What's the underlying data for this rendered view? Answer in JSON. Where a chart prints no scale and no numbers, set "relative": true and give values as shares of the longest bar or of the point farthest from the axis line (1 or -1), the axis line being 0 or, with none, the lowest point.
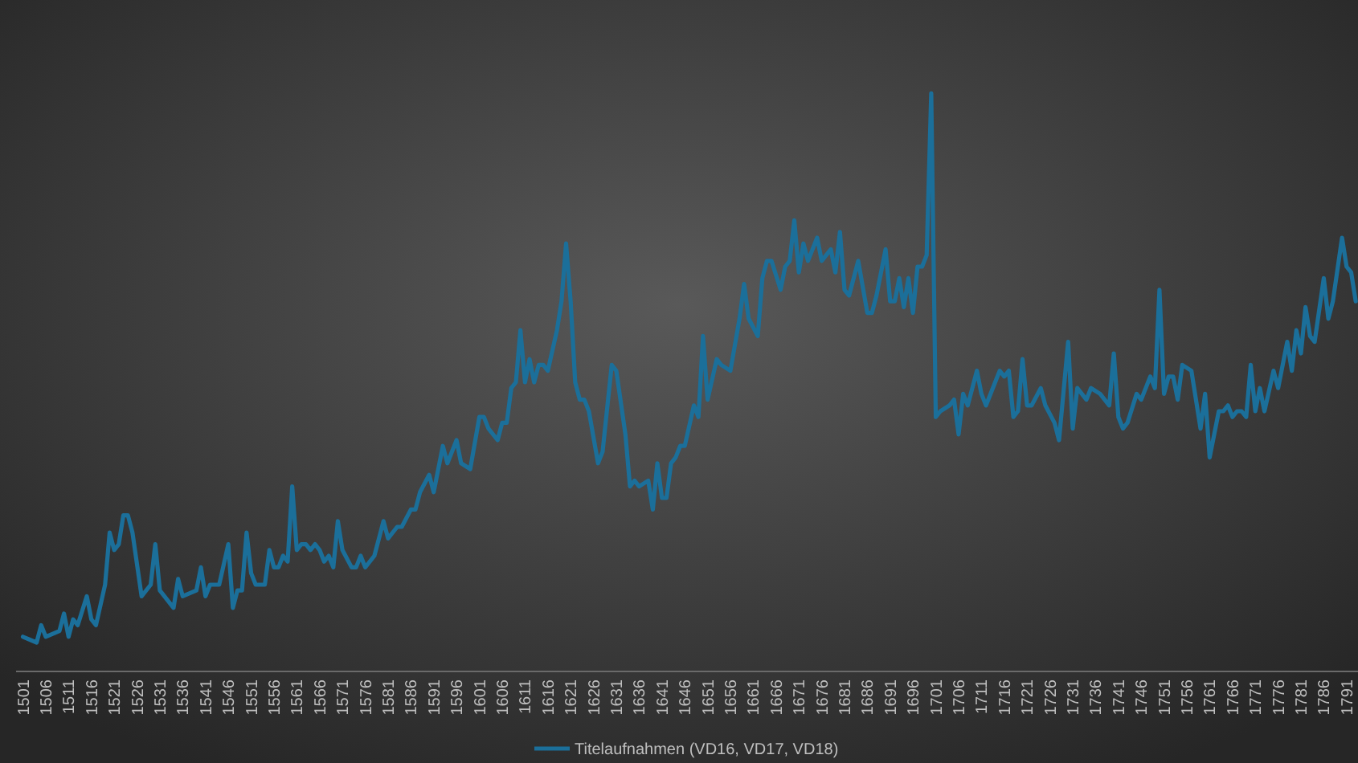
{
  "chart_data": {
    "type": "line",
    "relative": true,
    "legend": "bottom",
    "marker": "none",
    "line_style": "solid",
    "xlim": [
      1499.5,
      1793.5
    ],
    "xticks": [
      1501,
      1506,
      1511,
      1516,
      1521,
      1526,
      1531,
      1536,
      1541,
      1546,
      1551,
      1556,
      1561,
      1566,
      1571,
      1576,
      1581,
      1586,
      1591,
      1596,
      1601,
      1606,
      1611,
      1616,
      1621,
      1626,
      1631,
      1636,
      1641,
      1646,
      1651,
      1656,
      1661,
      1666,
      1671,
      1676,
      1681,
      1686,
      1691,
      1696,
      1701,
      1706,
      1711,
      1716,
      1721,
      1726,
      1731,
      1736,
      1741,
      1746,
      1751,
      1756,
      1761,
      1766,
      1771,
      1776,
      1781,
      1786,
      1791
    ],
    "x": [
      1501,
      1504,
      1505,
      1506,
      1509,
      1510,
      1511,
      1512,
      1513,
      1515,
      1516,
      1517,
      1519,
      1520,
      1521,
      1522,
      1523,
      1524,
      1525,
      1527,
      1529,
      1530,
      1531,
      1533,
      1534,
      1535,
      1536,
      1539,
      1540,
      1541,
      1542,
      1544,
      1546,
      1547,
      1548,
      1549,
      1550,
      1551,
      1552,
      1553,
      1554,
      1555,
      1556,
      1557,
      1558,
      1559,
      1560,
      1561,
      1562,
      1563,
      1564,
      1565,
      1566,
      1567,
      1568,
      1569,
      1570,
      1571,
      1573,
      1574,
      1575,
      1576,
      1578,
      1580,
      1581,
      1583,
      1584,
      1586,
      1587,
      1588,
      1590,
      1591,
      1593,
      1594,
      1596,
      1597,
      1599,
      1601,
      1602,
      1603,
      1605,
      1606,
      1607,
      1608,
      1609,
      1610,
      1611,
      1612,
      1613,
      1614,
      1615,
      1616,
      1618,
      1619,
      1620,
      1621,
      1622,
      1623,
      1624,
      1625,
      1627,
      1628,
      1630,
      1631,
      1633,
      1634,
      1635,
      1636,
      1638,
      1639,
      1640,
      1641,
      1642,
      1643,
      1644,
      1645,
      1646,
      1648,
      1649,
      1650,
      1651,
      1653,
      1654,
      1656,
      1658,
      1659,
      1660,
      1662,
      1663,
      1664,
      1665,
      1667,
      1668,
      1669,
      1670,
      1671,
      1672,
      1673,
      1675,
      1676,
      1678,
      1679,
      1680,
      1681,
      1682,
      1684,
      1686,
      1687,
      1688,
      1690,
      1691,
      1692,
      1693,
      1694,
      1695,
      1696,
      1697,
      1698,
      1699,
      1700,
      1701,
      1702,
      1704,
      1705,
      1706,
      1707,
      1708,
      1710,
      1711,
      1712,
      1714,
      1715,
      1716,
      1717,
      1718,
      1719,
      1720,
      1721,
      1722,
      1724,
      1725,
      1727,
      1728,
      1730,
      1731,
      1732,
      1734,
      1735,
      1737,
      1739,
      1740,
      1741,
      1742,
      1743,
      1745,
      1746,
      1748,
      1749,
      1750,
      1751,
      1752,
      1753,
      1754,
      1755,
      1757,
      1759,
      1760,
      1761,
      1763,
      1764,
      1765,
      1766,
      1767,
      1768,
      1769,
      1770,
      1771,
      1772,
      1773,
      1775,
      1776,
      1778,
      1779,
      1780,
      1781,
      1782,
      1783,
      1784,
      1786,
      1787,
      1788,
      1790,
      1791,
      1792,
      1793
    ],
    "series": [
      {
        "name": "Titelaufnahmen (VD16, VD17, VD18)",
        "color": "#1b6f9a",
        "values": [
          0.06,
          0.05,
          0.08,
          0.06,
          0.07,
          0.1,
          0.06,
          0.09,
          0.08,
          0.13,
          0.09,
          0.08,
          0.15,
          0.24,
          0.21,
          0.22,
          0.27,
          0.27,
          0.24,
          0.13,
          0.15,
          0.22,
          0.14,
          0.12,
          0.11,
          0.16,
          0.13,
          0.14,
          0.18,
          0.13,
          0.15,
          0.15,
          0.22,
          0.11,
          0.14,
          0.14,
          0.24,
          0.17,
          0.15,
          0.15,
          0.15,
          0.21,
          0.18,
          0.18,
          0.2,
          0.19,
          0.32,
          0.21,
          0.22,
          0.22,
          0.21,
          0.22,
          0.21,
          0.19,
          0.2,
          0.18,
          0.26,
          0.21,
          0.18,
          0.18,
          0.2,
          0.18,
          0.2,
          0.26,
          0.23,
          0.25,
          0.25,
          0.28,
          0.28,
          0.31,
          0.34,
          0.31,
          0.39,
          0.36,
          0.4,
          0.36,
          0.35,
          0.44,
          0.44,
          0.42,
          0.4,
          0.43,
          0.43,
          0.49,
          0.5,
          0.59,
          0.5,
          0.54,
          0.5,
          0.53,
          0.53,
          0.52,
          0.59,
          0.64,
          0.74,
          0.64,
          0.5,
          0.47,
          0.47,
          0.45,
          0.36,
          0.38,
          0.53,
          0.52,
          0.41,
          0.32,
          0.33,
          0.32,
          0.33,
          0.28,
          0.36,
          0.3,
          0.3,
          0.36,
          0.37,
          0.39,
          0.39,
          0.46,
          0.44,
          0.58,
          0.47,
          0.54,
          0.53,
          0.52,
          0.61,
          0.67,
          0.61,
          0.58,
          0.68,
          0.71,
          0.71,
          0.66,
          0.7,
          0.71,
          0.78,
          0.69,
          0.74,
          0.71,
          0.75,
          0.71,
          0.73,
          0.69,
          0.76,
          0.66,
          0.65,
          0.71,
          0.62,
          0.62,
          0.65,
          0.73,
          0.64,
          0.64,
          0.68,
          0.63,
          0.68,
          0.62,
          0.7,
          0.7,
          0.72,
          1,
          0.44,
          0.45,
          0.46,
          0.47,
          0.41,
          0.48,
          0.46,
          0.52,
          0.48,
          0.46,
          0.5,
          0.52,
          0.51,
          0.52,
          0.44,
          0.45,
          0.54,
          0.46,
          0.46,
          0.49,
          0.46,
          0.43,
          0.4,
          0.57,
          0.42,
          0.49,
          0.47,
          0.49,
          0.48,
          0.46,
          0.55,
          0.44,
          0.42,
          0.43,
          0.48,
          0.47,
          0.51,
          0.49,
          0.66,
          0.48,
          0.51,
          0.51,
          0.47,
          0.53,
          0.52,
          0.42,
          0.48,
          0.37,
          0.45,
          0.45,
          0.46,
          0.44,
          0.45,
          0.45,
          0.44,
          0.53,
          0.45,
          0.49,
          0.45,
          0.52,
          0.49,
          0.57,
          0.52,
          0.59,
          0.55,
          0.63,
          0.58,
          0.57,
          0.68,
          0.61,
          0.64,
          0.75,
          0.7,
          0.69,
          0.64
        ]
      }
    ]
  }
}
